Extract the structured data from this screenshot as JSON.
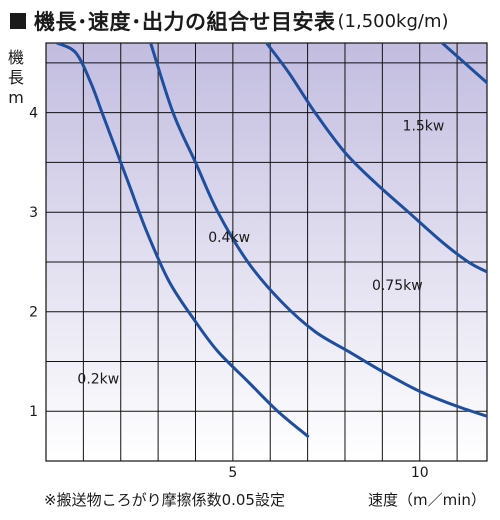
{
  "title": "機長･速度･出力の組合せ目安表",
  "title_condition": "(1,500kg/m)",
  "footnote": "※搬送物ころがり摩擦係数0.05設定",
  "colors": {
    "curve": "#1f4e9c",
    "grid": "#111111",
    "gradient_top": "#c2bde0",
    "gradient_bottom": "#ffffff"
  },
  "chart_data": {
    "type": "line",
    "title": "機長･速度･出力の組合せ目安表(1,500kg/m)",
    "xlabel": "速度（m／min）",
    "ylabel": [
      "機",
      "長",
      "m"
    ],
    "xlim": [
      0,
      11.8
    ],
    "ylim": [
      0.5,
      4.7
    ],
    "x_ticks": [
      5,
      10
    ],
    "y_ticks": [
      1,
      2,
      3,
      4
    ],
    "grid": true,
    "series": [
      {
        "name": "0.2kw",
        "x": [
          0.3,
          0.8,
          1.2,
          1.5,
          1.8,
          2.2,
          2.7,
          3.3,
          4.0,
          4.6,
          5.4,
          6.2,
          7.0
        ],
        "y": [
          4.7,
          4.6,
          4.3,
          4.0,
          3.7,
          3.3,
          2.8,
          2.3,
          1.9,
          1.6,
          1.3,
          1.0,
          0.75
        ]
      },
      {
        "name": "0.4kw",
        "x": [
          2.8,
          3.4,
          4.0,
          4.6,
          5.4,
          6.3,
          7.2,
          8.1,
          9.0,
          10.0,
          11.0,
          11.8
        ],
        "y": [
          4.7,
          4.0,
          3.5,
          3.0,
          2.5,
          2.1,
          1.8,
          1.6,
          1.4,
          1.2,
          1.05,
          0.95
        ]
      },
      {
        "name": "0.75kw",
        "x": [
          5.9,
          6.5,
          7.2,
          8.0,
          8.8,
          9.7,
          10.6,
          11.3,
          11.8
        ],
        "y": [
          4.7,
          4.4,
          4.0,
          3.6,
          3.3,
          3.0,
          2.7,
          2.5,
          2.4
        ]
      },
      {
        "name": "1.5kw",
        "x": [
          10.6,
          11.2,
          11.8
        ],
        "y": [
          4.7,
          4.5,
          4.3
        ]
      }
    ],
    "labels": [
      {
        "text": "0.2kw",
        "x": 1.4,
        "y": 1.28
      },
      {
        "text": "0.4kw",
        "x": 4.9,
        "y": 2.7
      },
      {
        "text": "0.75kw",
        "x": 9.4,
        "y": 2.22
      },
      {
        "text": "1.5kw",
        "x": 10.1,
        "y": 3.82
      }
    ]
  }
}
